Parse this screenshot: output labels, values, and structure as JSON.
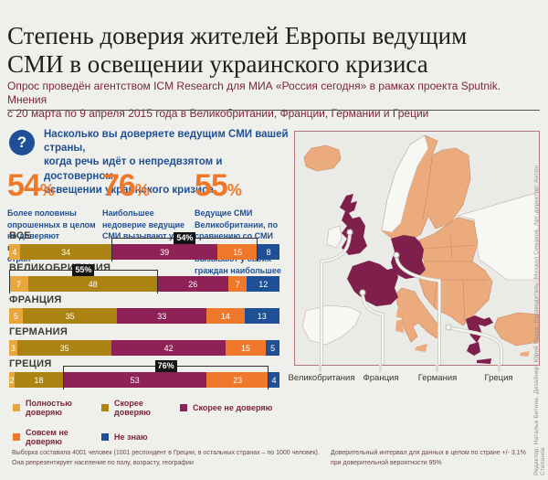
{
  "page": {
    "title": "Степень доверия жителей Европы ведущим\nСМИ в освещении украинского кризиса",
    "subtitle": "Опрос проведён агентством ICM Research для МИА «Россия сегодня» в рамках проекта Sputnik. Мнения\nс 20 марта по 9 апреля 2015 года в Великобритании, Франции, Германии и Греции"
  },
  "question": {
    "icon_glyph": "?",
    "text": "Насколько вы доверяете ведущим СМИ вашей страны,\nкогда речь идёт о непредвзятом и достоверном\nосвещении украинского кризиса"
  },
  "stats": [
    {
      "value": "54",
      "unit": "%",
      "caption": "Более половины опрошенных в целом не доверяют ведущим СМИ своих стран"
    },
    {
      "value": "76",
      "unit": "%",
      "caption": "Наибольшее недоверие ведущие СМИ вызывают у жителей Греции"
    },
    {
      "value": "55",
      "unit": "%",
      "caption": "Ведущие СМИ Великобритании, по сравнению со СМИ других стран, вызывают у своих граждан наибольшее доверие"
    }
  ],
  "chart_data": {
    "type": "bar",
    "stacked": true,
    "orientation": "horizontal",
    "xlim": [
      0,
      100
    ],
    "categories": [
      "ВСЕ",
      "ВЕЛИКОБРИТАНИЯ",
      "ФРАНЦИЯ",
      "ГЕРМАНИЯ",
      "ГРЕЦИЯ"
    ],
    "series": [
      {
        "name": "Полностью доверяю",
        "color": "#E8A73C",
        "values": [
          4,
          7,
          5,
          3,
          2
        ]
      },
      {
        "name": "Скорее доверяю",
        "color": "#AB8313",
        "values": [
          34,
          48,
          35,
          35,
          18
        ]
      },
      {
        "name": "Скорее не доверяю",
        "color": "#8E2155",
        "values": [
          39,
          26,
          33,
          42,
          53
        ]
      },
      {
        "name": "Совсем не доверяю",
        "color": "#F0782A",
        "values": [
          15,
          7,
          14,
          15,
          23
        ]
      },
      {
        "name": "Не знаю",
        "color": "#1F4F96",
        "values": [
          8,
          12,
          13,
          5,
          4
        ]
      }
    ],
    "annotations": [
      {
        "row": "ВСЕ",
        "label": "54%",
        "from_segment": 2,
        "to_segment": 3
      },
      {
        "row": "ВЕЛИКОБРИТАНИЯ",
        "label": "55%",
        "from_segment": 0,
        "to_segment": 1
      },
      {
        "row": "ГРЕЦИЯ",
        "label": "76%",
        "from_segment": 2,
        "to_segment": 3
      }
    ],
    "legend_position": "bottom",
    "grid": false
  },
  "map": {
    "labels": [
      "Великобритания",
      "Франция",
      "Германия",
      "Греция"
    ],
    "highlight_color": "#7E1F4C",
    "land_color": "#ECAB7D"
  },
  "footer": {
    "left": "Выборка составила 4001 человек (1001 респондент в Греции, в остальных странах – по 1000 человек).\nОна репрезентирует население по полу, возрасту, географии",
    "right": "Доверительный интервал для данных в целом по стране +/- 3,1%\nпри доверительной вероятности 95%"
  },
  "credits": "Редактор: Наталья Бетина. Дизайнер: Юрий Реука. Руководитель: Михаил Симаков. Арт-директор: Антон Степанов"
}
